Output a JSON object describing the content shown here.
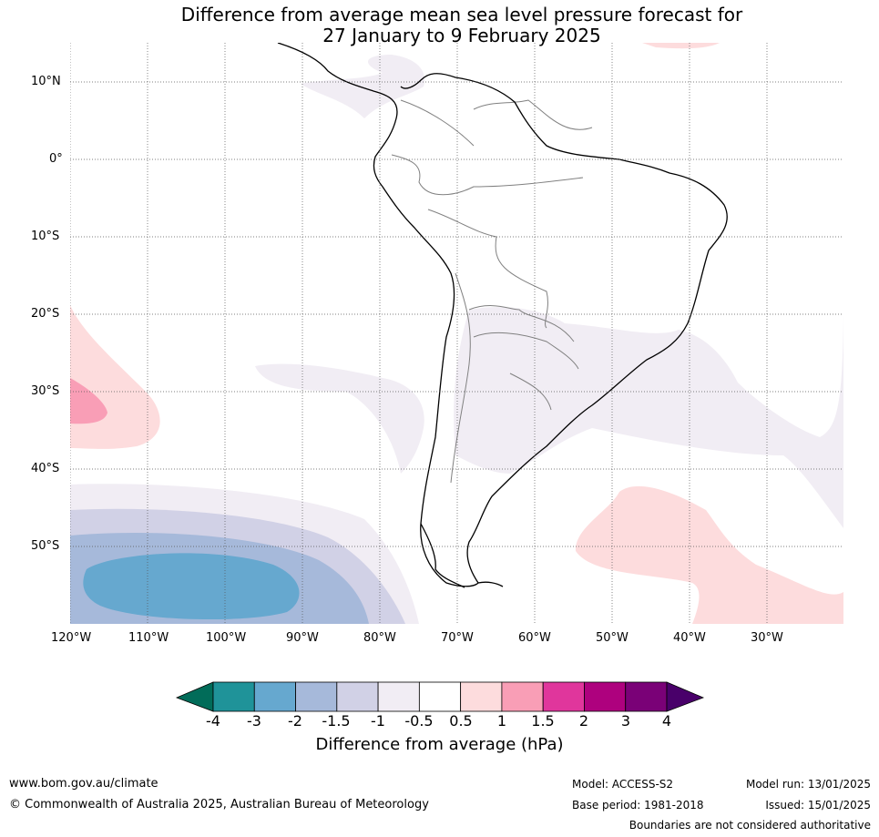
{
  "title": {
    "line1": "Difference from average mean sea level pressure forecast for",
    "line2": "27 January to 9 February 2025"
  },
  "map": {
    "lat_labels": [
      "10°N",
      "0°",
      "10°S",
      "20°S",
      "30°S",
      "40°S",
      "50°S"
    ],
    "lon_labels": [
      "120°W",
      "110°W",
      "100°W",
      "90°W",
      "80°W",
      "70°W",
      "60°W",
      "50°W",
      "40°W",
      "30°W"
    ],
    "colors": {
      "coast": "#000000",
      "borders": "#808080",
      "grid": "#555555"
    }
  },
  "colorbar": {
    "ticks": [
      "-4",
      "-3",
      "-2",
      "-1.5",
      "-1",
      "-0.5",
      "0.5",
      "1",
      "1.5",
      "2",
      "3",
      "4"
    ],
    "bins": [
      "#1f9399",
      "#66a8cf",
      "#a6b9da",
      "#d1d1e6",
      "#f1edf4",
      "#ffffff",
      "#fddcdd",
      "#f99eb6",
      "#e0369c",
      "#ae017e",
      "#7a0177"
    ],
    "under_color": "#016c59",
    "over_color": "#49006a",
    "label": "Difference from average (hPa)"
  },
  "footer": {
    "website": "www.bom.gov.au/climate",
    "copyright": "© Commonwealth of Australia 2025, Australian Bureau of Meteorology",
    "model": "Model: ACCESS-S2",
    "base_period": "Base period: 1981-2018",
    "model_run": "Model run: 13/01/2025",
    "issued": "Issued: 15/01/2025",
    "disclaimer": "Boundaries are not considered authoritative"
  }
}
